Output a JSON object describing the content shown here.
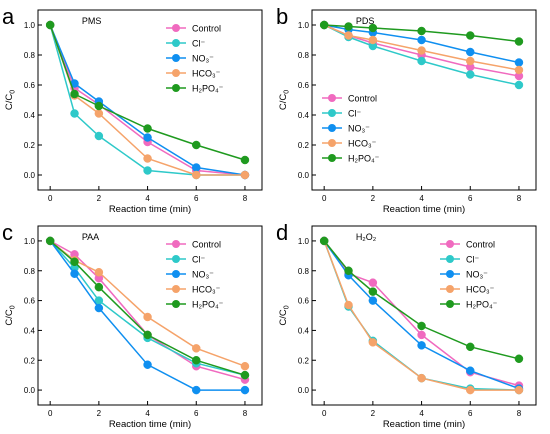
{
  "figure": {
    "series_style": [
      {
        "color": "#f06abf",
        "marker": "circle"
      },
      {
        "color": "#2ec9c9",
        "marker": "circle"
      },
      {
        "color": "#0f8ff0",
        "marker": "circle"
      },
      {
        "color": "#f5a36a",
        "marker": "circle"
      },
      {
        "color": "#1f9a1f",
        "marker": "circle"
      }
    ]
  },
  "chart_data": [
    {
      "type": "line",
      "panel_letter": "a",
      "title": "PMS",
      "xlabel": "Reaction time (min)",
      "ylabel": "C/C0",
      "xlim": [
        -0.5,
        8.7
      ],
      "ylim": [
        -0.1,
        1.1
      ],
      "xticks": [
        0,
        2,
        4,
        6,
        8
      ],
      "yticks": [
        0.0,
        0.2,
        0.4,
        0.6,
        0.8,
        1.0
      ],
      "legend_position": "top-right",
      "grid": false,
      "series": [
        {
          "name": "Control",
          "x": [
            0,
            1,
            2,
            4,
            6,
            8
          ],
          "y": [
            1.0,
            0.58,
            0.47,
            0.22,
            0.03,
            0.0
          ]
        },
        {
          "name": "Cl⁻",
          "x": [
            0,
            1,
            2,
            4,
            6,
            8
          ],
          "y": [
            1.0,
            0.41,
            0.26,
            0.03,
            0.0,
            0.0
          ]
        },
        {
          "name": "NO₃⁻",
          "x": [
            0,
            1,
            2,
            4,
            6,
            8
          ],
          "y": [
            1.0,
            0.61,
            0.49,
            0.25,
            0.05,
            0.0
          ]
        },
        {
          "name": "HCO₃⁻",
          "x": [
            0,
            1,
            2,
            4,
            6,
            8
          ],
          "y": [
            1.0,
            0.53,
            0.41,
            0.11,
            0.0,
            0.0
          ]
        },
        {
          "name": "H₂PO₄⁻",
          "x": [
            0,
            1,
            2,
            4,
            6,
            8
          ],
          "y": [
            1.0,
            0.54,
            0.46,
            0.31,
            0.2,
            0.1
          ]
        }
      ]
    },
    {
      "type": "line",
      "panel_letter": "b",
      "title": "PDS",
      "xlabel": "Reaction time (min)",
      "ylabel": "C/C0",
      "xlim": [
        -0.5,
        8.7
      ],
      "ylim": [
        -0.1,
        1.1
      ],
      "xticks": [
        0,
        2,
        4,
        6,
        8
      ],
      "yticks": [
        0.0,
        0.2,
        0.4,
        0.6,
        0.8,
        1.0
      ],
      "legend_position": "bottom-left",
      "grid": false,
      "series": [
        {
          "name": "Control",
          "x": [
            0,
            1,
            2,
            4,
            6,
            8
          ],
          "y": [
            1.0,
            0.93,
            0.88,
            0.8,
            0.72,
            0.66
          ]
        },
        {
          "name": "Cl⁻",
          "x": [
            0,
            1,
            2,
            4,
            6,
            8
          ],
          "y": [
            1.0,
            0.92,
            0.86,
            0.76,
            0.67,
            0.6
          ]
        },
        {
          "name": "NO₃⁻",
          "x": [
            0,
            1,
            2,
            4,
            6,
            8
          ],
          "y": [
            1.0,
            0.97,
            0.95,
            0.9,
            0.82,
            0.75
          ]
        },
        {
          "name": "HCO₃⁻",
          "x": [
            0,
            1,
            2,
            4,
            6,
            8
          ],
          "y": [
            1.0,
            0.93,
            0.9,
            0.83,
            0.76,
            0.7
          ]
        },
        {
          "name": "H₂PO₄⁻",
          "x": [
            0,
            1,
            2,
            4,
            6,
            8
          ],
          "y": [
            1.0,
            0.99,
            0.98,
            0.96,
            0.93,
            0.89
          ]
        }
      ]
    },
    {
      "type": "line",
      "panel_letter": "c",
      "title": "PAA",
      "xlabel": "Reaction time (min)",
      "ylabel": "C/C0",
      "xlim": [
        -0.5,
        8.7
      ],
      "ylim": [
        -0.1,
        1.1
      ],
      "xticks": [
        0,
        2,
        4,
        6,
        8
      ],
      "yticks": [
        0.0,
        0.2,
        0.4,
        0.6,
        0.8,
        1.0
      ],
      "legend_position": "top-right",
      "grid": false,
      "series": [
        {
          "name": "Control",
          "x": [
            0,
            1,
            2,
            4,
            6,
            8
          ],
          "y": [
            1.0,
            0.91,
            0.75,
            0.37,
            0.16,
            0.07
          ]
        },
        {
          "name": "Cl⁻",
          "x": [
            0,
            1,
            2,
            4,
            6,
            8
          ],
          "y": [
            1.0,
            0.82,
            0.6,
            0.35,
            0.18,
            0.1
          ]
        },
        {
          "name": "NO₃⁻",
          "x": [
            0,
            1,
            2,
            4,
            6,
            8
          ],
          "y": [
            1.0,
            0.78,
            0.55,
            0.17,
            0.0,
            0.0
          ]
        },
        {
          "name": "HCO₃⁻",
          "x": [
            0,
            1,
            2,
            4,
            6,
            8
          ],
          "y": [
            1.0,
            0.87,
            0.79,
            0.49,
            0.28,
            0.16
          ]
        },
        {
          "name": "H₂PO₄⁻",
          "x": [
            0,
            1,
            2,
            4,
            6,
            8
          ],
          "y": [
            1.0,
            0.86,
            0.69,
            0.37,
            0.2,
            0.1
          ]
        }
      ]
    },
    {
      "type": "line",
      "panel_letter": "d",
      "title": "H₂O₂",
      "xlabel": "Reaction time (min)",
      "ylabel": "C/C0",
      "xlim": [
        -0.5,
        8.7
      ],
      "ylim": [
        -0.1,
        1.1
      ],
      "xticks": [
        0,
        2,
        4,
        6,
        8
      ],
      "yticks": [
        0.0,
        0.2,
        0.4,
        0.6,
        0.8,
        1.0
      ],
      "legend_position": "top-right",
      "grid": false,
      "series": [
        {
          "name": "Control",
          "x": [
            0,
            1,
            2,
            4,
            6,
            8
          ],
          "y": [
            1.0,
            0.78,
            0.72,
            0.37,
            0.12,
            0.03
          ]
        },
        {
          "name": "Cl⁻",
          "x": [
            0,
            1,
            2,
            4,
            6,
            8
          ],
          "y": [
            1.0,
            0.56,
            0.33,
            0.08,
            0.01,
            0.0
          ]
        },
        {
          "name": "NO₃⁻",
          "x": [
            0,
            1,
            2,
            4,
            6,
            8
          ],
          "y": [
            1.0,
            0.77,
            0.6,
            0.3,
            0.13,
            0.01
          ]
        },
        {
          "name": "HCO₃⁻",
          "x": [
            0,
            1,
            2,
            4,
            6,
            8
          ],
          "y": [
            1.0,
            0.57,
            0.32,
            0.08,
            0.0,
            0.0
          ]
        },
        {
          "name": "H₂PO₄⁻",
          "x": [
            0,
            1,
            2,
            4,
            6,
            8
          ],
          "y": [
            1.0,
            0.8,
            0.66,
            0.43,
            0.29,
            0.21
          ]
        }
      ]
    }
  ]
}
